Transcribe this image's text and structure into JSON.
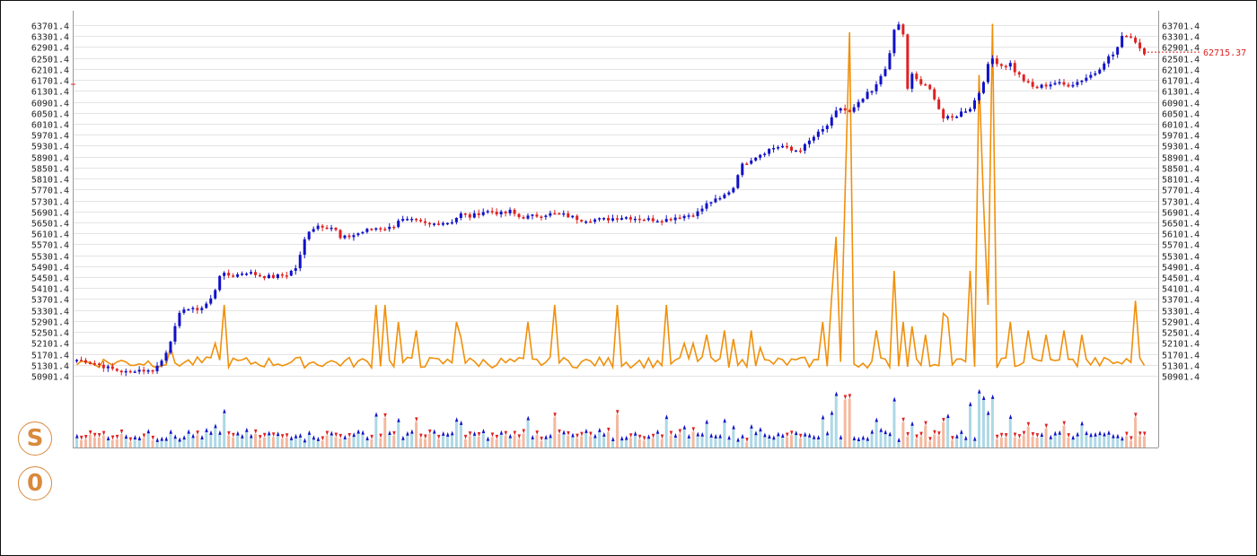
{
  "buttons": {
    "s_label": "S",
    "zero_label": "0"
  },
  "colors": {
    "up": "#1010c8",
    "down": "#e02020",
    "line": "#f0900a",
    "grid": "#e4e4e4",
    "axis": "#999999",
    "price_label": "#e02020",
    "vol_up": "#add8e6",
    "vol_down": "#f4b9a0"
  },
  "chart_data": {
    "type": "candlestick",
    "y_ticks": [
      "63701.4",
      "63301.4",
      "62901.4",
      "62501.4",
      "62101.4",
      "61701.4",
      "61301.4",
      "60901.4",
      "60501.4",
      "60101.4",
      "59701.4",
      "59301.4",
      "58901.4",
      "58501.4",
      "58101.4",
      "57701.4",
      "57301.4",
      "56901.4",
      "56501.4",
      "56101.4",
      "55701.4",
      "55301.4",
      "54901.4",
      "54501.4",
      "54101.4",
      "53701.4",
      "53301.4",
      "52901.4",
      "52501.4",
      "52101.4",
      "51701.4",
      "51301.4",
      "50901.4"
    ],
    "ylim": [
      50901.4,
      63701.4
    ],
    "last_price": "62715.37",
    "grid": true,
    "close_path": [
      [
        0,
        51480
      ],
      [
        10,
        51430
      ],
      [
        20,
        51320
      ],
      [
        30,
        51180
      ],
      [
        40,
        51080
      ],
      [
        50,
        51000
      ],
      [
        55,
        51120
      ],
      [
        60,
        51120
      ],
      [
        70,
        51060
      ],
      [
        75,
        51200
      ],
      [
        80,
        51400
      ],
      [
        85,
        51800
      ],
      [
        90,
        52300
      ],
      [
        95,
        52800
      ],
      [
        100,
        53400
      ],
      [
        110,
        53300
      ],
      [
        120,
        53400
      ],
      [
        130,
        53800
      ],
      [
        135,
        54600
      ],
      [
        150,
        54550
      ],
      [
        160,
        54700
      ],
      [
        175,
        54550
      ],
      [
        185,
        54500
      ],
      [
        200,
        54600
      ],
      [
        210,
        54900
      ],
      [
        215,
        55700
      ],
      [
        220,
        56200
      ],
      [
        230,
        56400
      ],
      [
        245,
        56300
      ],
      [
        250,
        55900
      ],
      [
        260,
        56000
      ],
      [
        275,
        56200
      ],
      [
        285,
        56300
      ],
      [
        300,
        56300
      ],
      [
        305,
        56600
      ],
      [
        320,
        56550
      ],
      [
        335,
        56400
      ],
      [
        345,
        56500
      ],
      [
        355,
        56500
      ],
      [
        365,
        56800
      ],
      [
        375,
        56700
      ],
      [
        385,
        56900
      ],
      [
        395,
        56900
      ],
      [
        405,
        56800
      ],
      [
        412,
        56900
      ],
      [
        420,
        56700
      ],
      [
        430,
        56700
      ],
      [
        445,
        56800
      ],
      [
        460,
        56800
      ],
      [
        470,
        56700
      ],
      [
        480,
        56600
      ],
      [
        500,
        56600
      ],
      [
        520,
        56700
      ],
      [
        545,
        56600
      ],
      [
        560,
        56600
      ],
      [
        570,
        56700
      ],
      [
        580,
        56750
      ],
      [
        590,
        56850
      ],
      [
        600,
        57200
      ],
      [
        605,
        57300
      ],
      [
        610,
        57300
      ],
      [
        625,
        57800
      ],
      [
        630,
        58500
      ],
      [
        640,
        58800
      ],
      [
        650,
        59000
      ],
      [
        660,
        59200
      ],
      [
        670,
        59300
      ],
      [
        680,
        59100
      ],
      [
        690,
        59200
      ],
      [
        695,
        59400
      ],
      [
        700,
        59600
      ],
      [
        710,
        59900
      ],
      [
        715,
        60100
      ],
      [
        725,
        60700
      ],
      [
        735,
        60500
      ],
      [
        745,
        60900
      ],
      [
        752,
        61200
      ],
      [
        758,
        61300
      ],
      [
        765,
        61900
      ],
      [
        772,
        62400
      ],
      [
        778,
        63700
      ],
      [
        785,
        63700
      ],
      [
        790,
        61300
      ],
      [
        795,
        62000
      ],
      [
        800,
        61600
      ],
      [
        810,
        61400
      ],
      [
        818,
        60900
      ],
      [
        822,
        60300
      ],
      [
        832,
        60300
      ],
      [
        840,
        60500
      ],
      [
        850,
        60700
      ],
      [
        860,
        61400
      ],
      [
        865,
        62100
      ],
      [
        870,
        62500
      ],
      [
        880,
        62200
      ],
      [
        888,
        62300
      ],
      [
        890,
        62100
      ],
      [
        900,
        61700
      ],
      [
        910,
        61400
      ],
      [
        920,
        61500
      ],
      [
        930,
        61600
      ],
      [
        940,
        61500
      ],
      [
        950,
        61600
      ],
      [
        960,
        61800
      ],
      [
        970,
        62000
      ],
      [
        975,
        62300
      ],
      [
        980,
        62500
      ],
      [
        988,
        62700
      ],
      [
        992,
        63200
      ],
      [
        998,
        63350
      ],
      [
        1005,
        63200
      ],
      [
        1010,
        62900
      ],
      [
        1015,
        62715
      ]
    ],
    "line_spikes": [
      [
        91,
        3
      ],
      [
        132,
        3.5
      ],
      [
        140,
        8
      ],
      [
        284,
        8
      ],
      [
        292,
        8
      ],
      [
        304,
        6
      ],
      [
        321,
        5
      ],
      [
        359,
        6
      ],
      [
        364,
        4.2
      ],
      [
        430,
        6
      ],
      [
        456,
        8
      ],
      [
        515,
        8
      ],
      [
        562,
        8
      ],
      [
        578,
        3.5
      ],
      [
        588,
        3.5
      ],
      [
        600,
        4.5
      ],
      [
        616,
        5
      ],
      [
        624,
        4
      ],
      [
        640,
        5
      ],
      [
        650,
        3
      ],
      [
        710,
        6
      ],
      [
        718,
        9
      ],
      [
        723,
        16
      ],
      [
        730,
        21
      ],
      [
        736,
        40
      ],
      [
        760,
        5
      ],
      [
        776,
        12
      ],
      [
        786,
        6
      ],
      [
        796,
        5.5
      ],
      [
        808,
        4.5
      ],
      [
        822,
        7
      ],
      [
        828,
        6.5
      ],
      [
        848,
        12
      ],
      [
        857,
        35
      ],
      [
        862,
        20
      ],
      [
        868,
        8
      ],
      [
        872,
        41
      ],
      [
        888,
        6
      ],
      [
        906,
        5
      ],
      [
        920,
        4.5
      ],
      [
        940,
        5
      ],
      [
        955,
        4.5
      ],
      [
        1005,
        8.5
      ]
    ]
  }
}
